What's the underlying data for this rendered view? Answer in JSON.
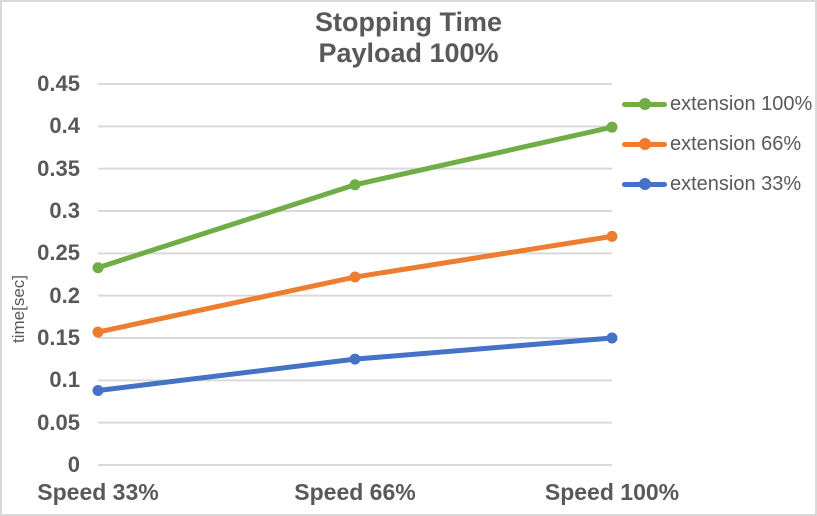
{
  "title": {
    "line1": "Stopping Time",
    "line2": "Payload 100%"
  },
  "chart_data": {
    "type": "line",
    "title": "Stopping Time — Payload 100%",
    "categories": [
      "Speed 33%",
      "Speed 66%",
      "Speed 100%"
    ],
    "series": [
      {
        "name": "extension 100%",
        "color": "#70AD47",
        "values": [
          0.233,
          0.331,
          0.399
        ]
      },
      {
        "name": "extension 66%",
        "color": "#ED7D31",
        "values": [
          0.157,
          0.222,
          0.27
        ]
      },
      {
        "name": "extension 33%",
        "color": "#4472C4",
        "values": [
          0.088,
          0.125,
          0.15
        ]
      }
    ],
    "xlabel": "",
    "ylabel": "time[sec]",
    "ylim": [
      0,
      0.45
    ],
    "ytick_step": 0.05,
    "y_ticks": [
      "0",
      "0.05",
      "0.1",
      "0.15",
      "0.2",
      "0.25",
      "0.3",
      "0.35",
      "0.4",
      "0.45"
    ],
    "grid": true,
    "legend_position": "right",
    "marker": "circle"
  },
  "colors": {
    "gridline": "#D9D9D9",
    "text": "#595959",
    "border": "#D9D9D9",
    "background": "#FFFFFF"
  }
}
